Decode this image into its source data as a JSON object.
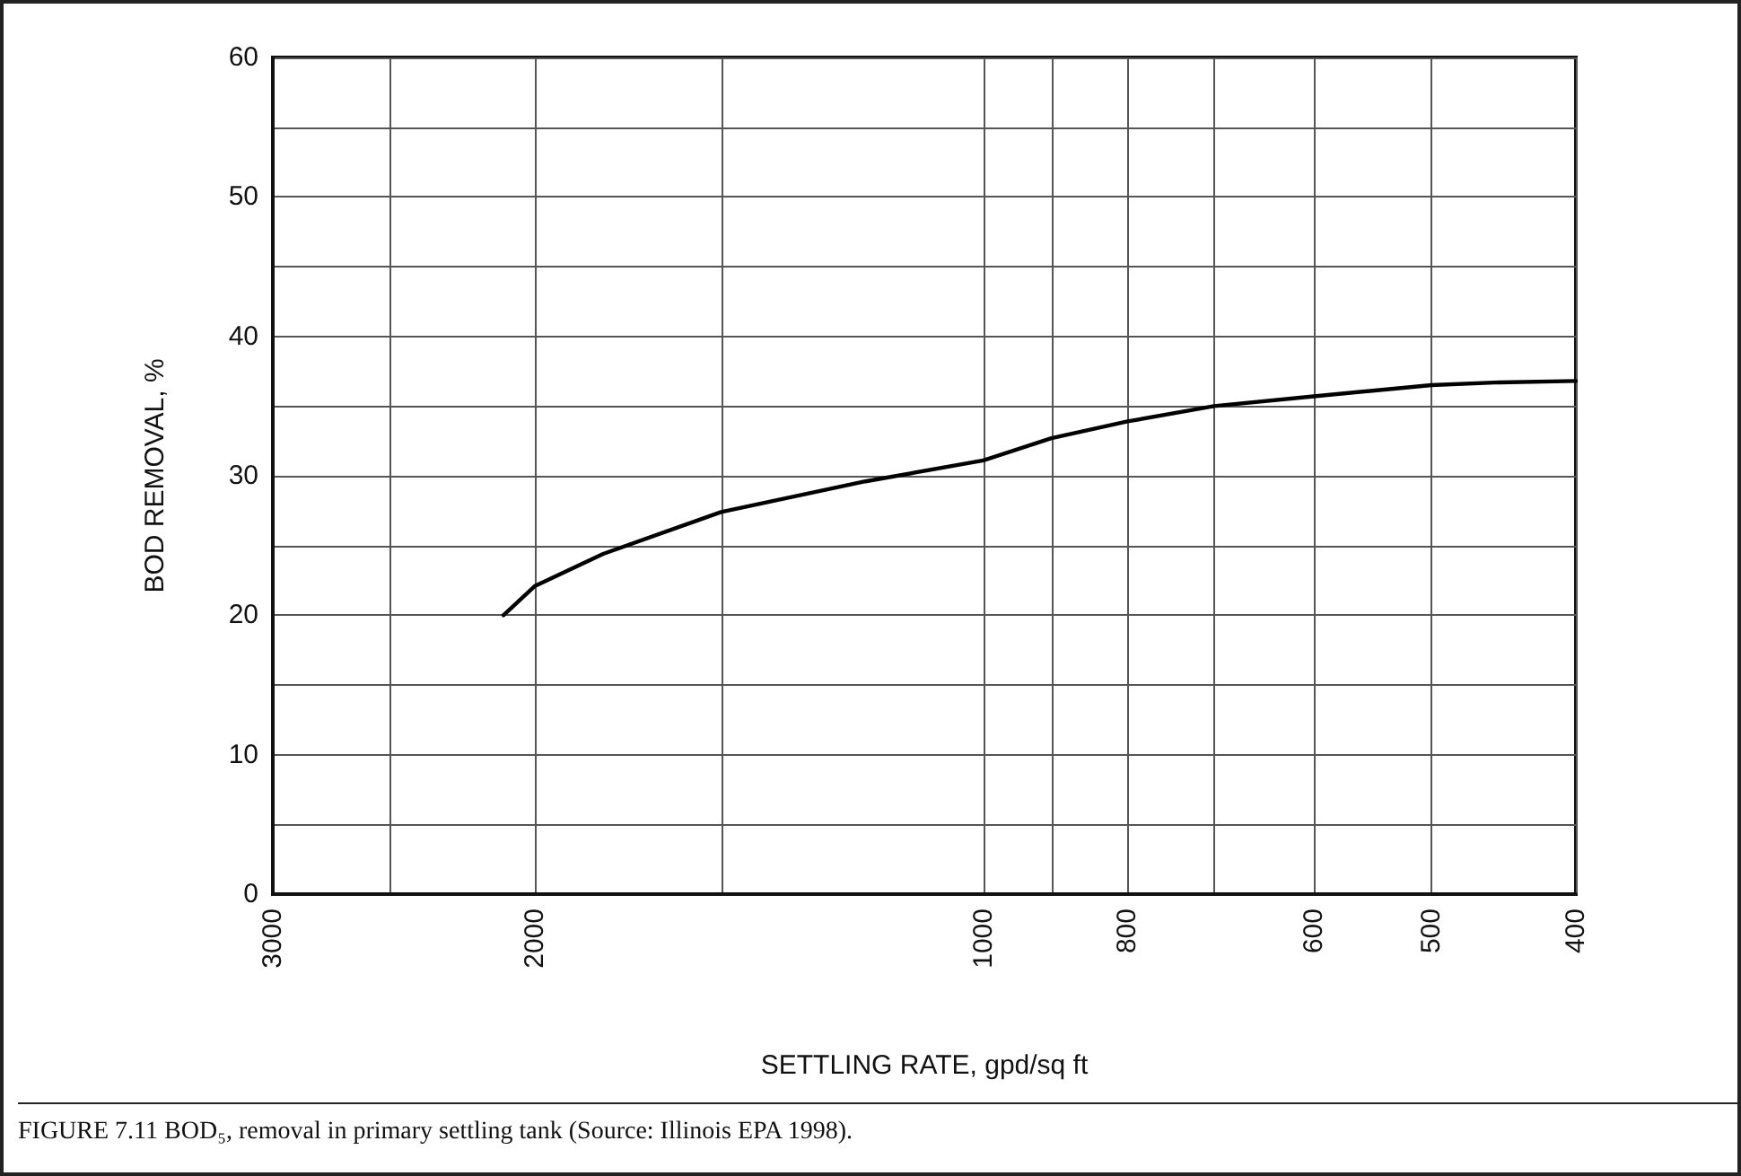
{
  "chart_data": {
    "type": "line",
    "xlabel": "SETTLING RATE, gpd/sq ft",
    "ylabel": "BOD REMOVAL, %",
    "annotations": [
      "FIGURE 7.11  BOD₅, removal in primary settling tank (Source: Illinois EPA 1998)."
    ],
    "xlim": [
      3000,
      400
    ],
    "xticks": [
      3000,
      {
        "value": 2500,
        "label": null
      },
      2000,
      {
        "value": 1500,
        "label": null
      },
      1000,
      {
        "value": 900,
        "label": null
      },
      800,
      {
        "value": 700,
        "label": null
      },
      600,
      500,
      400
    ],
    "ylim": [
      0,
      60
    ],
    "yticks": [
      0,
      {
        "value": 5,
        "label": null
      },
      10,
      {
        "value": 15,
        "label": null
      },
      20,
      {
        "value": 25,
        "label": null
      },
      30,
      {
        "value": 35,
        "label": null
      },
      40,
      {
        "value": 45,
        "label": null
      },
      50,
      {
        "value": 55,
        "label": null
      },
      60
    ],
    "grid": true,
    "log": "x",
    "marker": "none",
    "line_style": "solid",
    "series": [
      {
        "color": "#000000",
        "x": [
          2100,
          2000,
          1800,
          1500,
          1200,
          1000,
          900,
          800,
          700,
          600,
          500,
          450,
          400
        ],
        "values": [
          20.0,
          22.1,
          24.4,
          27.4,
          29.6,
          31.1,
          32.7,
          33.9,
          35.0,
          35.7,
          36.5,
          36.7,
          36.8
        ]
      }
    ]
  }
}
